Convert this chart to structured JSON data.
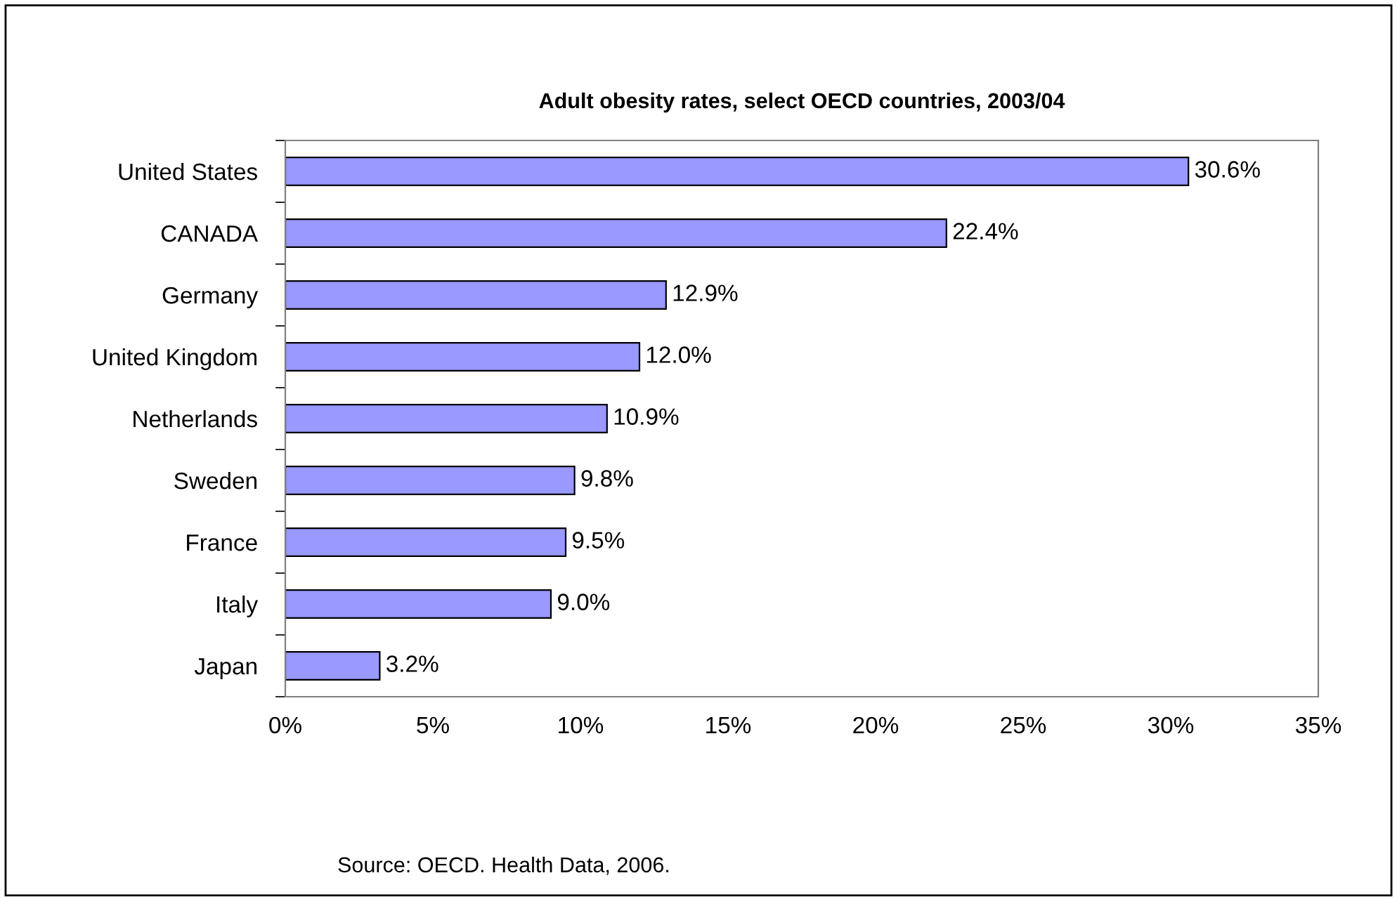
{
  "chart_data": {
    "type": "bar",
    "orientation": "horizontal",
    "title": "Adult obesity rates, select OECD countries, 2003/04",
    "categories": [
      "United States",
      "CANADA",
      "Germany",
      "United Kingdom",
      "Netherlands",
      "Sweden",
      "France",
      "Italy",
      "Japan"
    ],
    "values": [
      30.6,
      22.4,
      12.9,
      12.0,
      10.9,
      9.8,
      9.5,
      9.0,
      3.2
    ],
    "value_labels": [
      "30.6%",
      "22.4%",
      "12.9%",
      "12.0%",
      "10.9%",
      "9.8%",
      "9.5%",
      "9.0%",
      "3.2%"
    ],
    "color": "#9999ff",
    "xlim": [
      0,
      35
    ],
    "xticks": [
      {
        "value": 0,
        "label": "0%"
      },
      {
        "value": 5,
        "label": "5%"
      },
      {
        "value": 10,
        "label": "10%"
      },
      {
        "value": 15,
        "label": "15%"
      },
      {
        "value": 20,
        "label": "20%"
      },
      {
        "value": 25,
        "label": "25%"
      },
      {
        "value": 30,
        "label": "30%"
      },
      {
        "value": 35,
        "label": "35%"
      }
    ],
    "grid": false,
    "legend": false,
    "annotations": [
      "Source: OECD. Health Data, 2006."
    ]
  }
}
